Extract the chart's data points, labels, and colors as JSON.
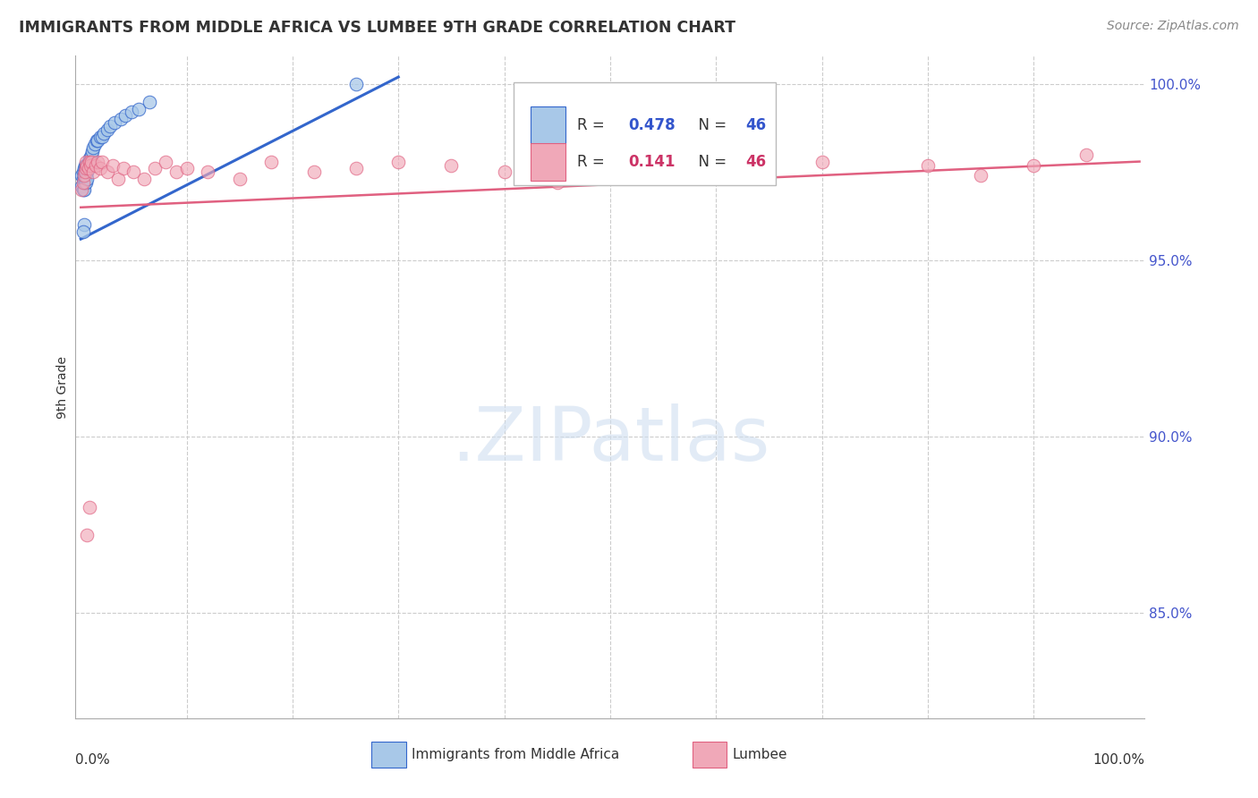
{
  "title": "IMMIGRANTS FROM MIDDLE AFRICA VS LUMBEE 9TH GRADE CORRELATION CHART",
  "source": "Source: ZipAtlas.com",
  "ylabel": "9th Grade",
  "xlim": [
    0.0,
    1.0
  ],
  "ylim": [
    0.82,
    1.008
  ],
  "yticks": [
    0.85,
    0.9,
    0.95,
    1.0
  ],
  "ytick_labels": [
    "85.0%",
    "90.0%",
    "95.0%",
    "100.0%"
  ],
  "blue_color": "#a8c8e8",
  "pink_color": "#f0a8b8",
  "blue_line_color": "#3366cc",
  "pink_line_color": "#e06080",
  "blue_scatter_x": [
    0.001,
    0.001,
    0.002,
    0.002,
    0.002,
    0.003,
    0.003,
    0.003,
    0.003,
    0.004,
    0.004,
    0.004,
    0.004,
    0.005,
    0.005,
    0.005,
    0.005,
    0.006,
    0.006,
    0.006,
    0.007,
    0.007,
    0.008,
    0.008,
    0.009,
    0.009,
    0.01,
    0.011,
    0.012,
    0.013,
    0.015,
    0.016,
    0.018,
    0.02,
    0.022,
    0.025,
    0.028,
    0.032,
    0.038,
    0.042,
    0.048,
    0.055,
    0.065,
    0.26,
    0.003,
    0.002
  ],
  "blue_scatter_y": [
    0.974,
    0.971,
    0.975,
    0.973,
    0.97,
    0.976,
    0.974,
    0.972,
    0.97,
    0.977,
    0.975,
    0.973,
    0.972,
    0.977,
    0.976,
    0.974,
    0.972,
    0.977,
    0.975,
    0.973,
    0.978,
    0.976,
    0.979,
    0.977,
    0.979,
    0.978,
    0.98,
    0.981,
    0.982,
    0.983,
    0.984,
    0.984,
    0.985,
    0.985,
    0.986,
    0.987,
    0.988,
    0.989,
    0.99,
    0.991,
    0.992,
    0.993,
    0.995,
    1.0,
    0.96,
    0.958
  ],
  "pink_scatter_x": [
    0.001,
    0.002,
    0.003,
    0.004,
    0.005,
    0.005,
    0.006,
    0.007,
    0.008,
    0.009,
    0.01,
    0.012,
    0.014,
    0.016,
    0.018,
    0.02,
    0.025,
    0.03,
    0.035,
    0.04,
    0.05,
    0.06,
    0.07,
    0.08,
    0.09,
    0.1,
    0.12,
    0.15,
    0.18,
    0.22,
    0.26,
    0.3,
    0.35,
    0.4,
    0.45,
    0.5,
    0.55,
    0.6,
    0.65,
    0.7,
    0.8,
    0.85,
    0.9,
    0.95,
    0.006,
    0.008
  ],
  "pink_scatter_y": [
    0.97,
    0.972,
    0.974,
    0.975,
    0.978,
    0.976,
    0.977,
    0.976,
    0.978,
    0.977,
    0.978,
    0.975,
    0.977,
    0.978,
    0.976,
    0.978,
    0.975,
    0.977,
    0.973,
    0.976,
    0.975,
    0.973,
    0.976,
    0.978,
    0.975,
    0.976,
    0.975,
    0.973,
    0.978,
    0.975,
    0.976,
    0.978,
    0.977,
    0.975,
    0.972,
    0.976,
    0.978,
    0.977,
    0.975,
    0.978,
    0.977,
    0.974,
    0.977,
    0.98,
    0.872,
    0.88
  ],
  "blue_line_x0": 0.0,
  "blue_line_x1": 0.3,
  "blue_line_y0": 0.956,
  "blue_line_y1": 1.002,
  "pink_line_x0": 0.0,
  "pink_line_x1": 1.0,
  "pink_line_y0": 0.965,
  "pink_line_y1": 0.978
}
